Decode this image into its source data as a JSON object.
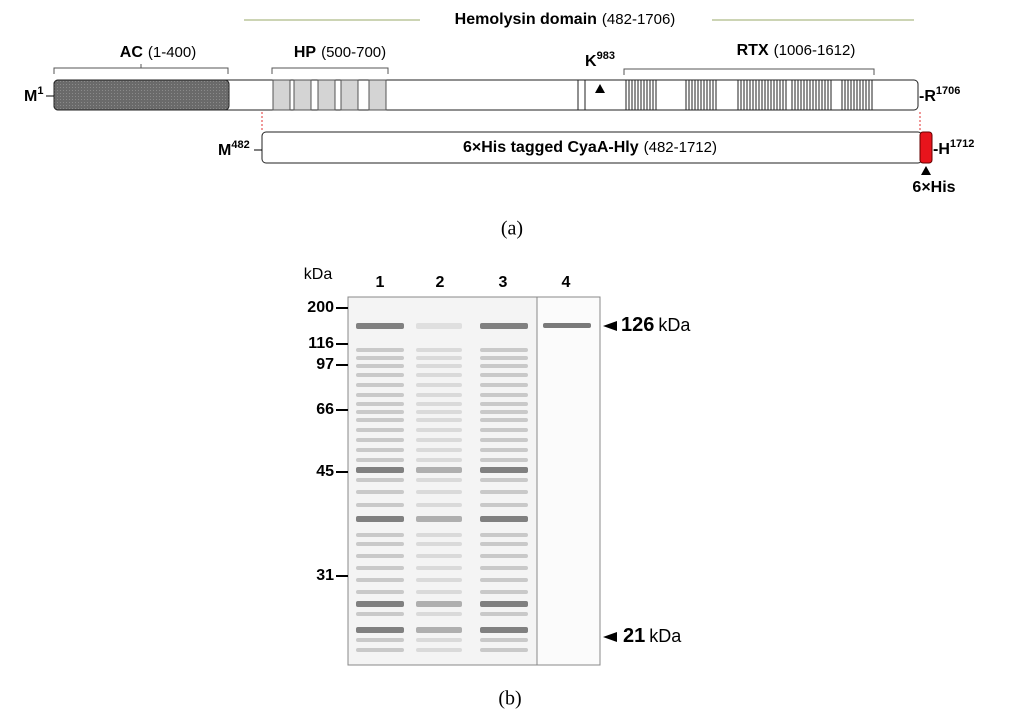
{
  "panel_a": {
    "hemolysin": {
      "name": "Hemolysin domain",
      "range": "(482-1706)"
    },
    "ac": {
      "name": "AC",
      "range": "(1-400)"
    },
    "hp": {
      "name": "HP",
      "range": "(500-700)"
    },
    "k_site": {
      "residue": "K",
      "number": "983"
    },
    "rtx": {
      "name": "RTX",
      "range": "(1006-1612)"
    },
    "n_term": {
      "residue": "M",
      "number": "1"
    },
    "c_term": {
      "residue": "-R",
      "number": "1706"
    },
    "construct": {
      "start_residue": "M",
      "start_number": "482",
      "name": "6×His tagged CyaA-Hly",
      "range": "(482-1712)",
      "end_residue": "-H",
      "end_number": "1712",
      "tag": "6×His"
    },
    "label": "(a)"
  },
  "panel_b": {
    "unit": "kDa",
    "lanes": [
      "1",
      "2",
      "3",
      "4"
    ],
    "markers": [
      "200",
      "116",
      "97",
      "66",
      "45",
      "31"
    ],
    "bands": [
      {
        "size": "126",
        "unit": "kDa"
      },
      {
        "size": "21",
        "unit": "kDa"
      }
    ],
    "label": "(b)"
  }
}
